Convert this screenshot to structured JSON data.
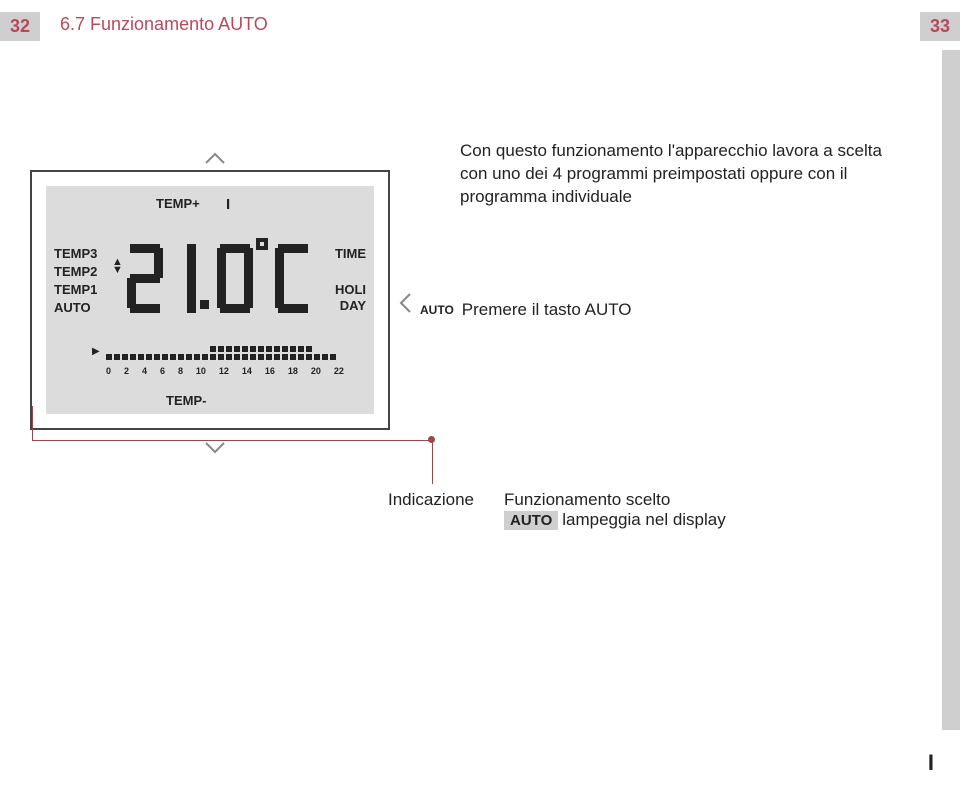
{
  "page": {
    "left_num": "32",
    "right_num": "33",
    "title": "6.7 Funzionamento AUTO",
    "i_mark": "I"
  },
  "device": {
    "temp_plus": "TEMP+",
    "day_bar": "I",
    "labels_left": {
      "t3": "TEMP3",
      "t2": "TEMP2",
      "t1": "TEMP1",
      "auto": "AUTO"
    },
    "labels_right": {
      "time": "TIME",
      "holi": "HOLI",
      "day": "DAY"
    },
    "temp_minus": "TEMP-",
    "digits": "21.0°C",
    "schedule_hours": [
      "0",
      "2",
      "4",
      "6",
      "8",
      "10",
      "12",
      "14",
      "16",
      "18",
      "20",
      "22"
    ],
    "schedule_top": [
      0,
      0,
      0,
      0,
      0,
      0,
      0,
      0,
      0,
      0,
      0,
      0,
      0,
      1,
      1,
      1,
      1,
      1,
      1,
      1,
      1,
      1,
      1,
      1,
      1,
      1,
      0,
      0,
      0,
      0
    ],
    "schedule_bottom": [
      1,
      1,
      1,
      1,
      1,
      1,
      1,
      1,
      1,
      1,
      1,
      1,
      1,
      1,
      1,
      1,
      1,
      1,
      1,
      1,
      1,
      1,
      1,
      1,
      1,
      1,
      1,
      1,
      1,
      0
    ]
  },
  "description": "Con questo funzionamento l'apparecchio lavora a scelta con uno dei 4 programmi preimpostati oppure con il programma individuale",
  "action": {
    "prefix": "AUTO",
    "text": "Premere il tasto AUTO"
  },
  "indication": {
    "label": "Indicazione",
    "right_line1": "Funzionamento scelto",
    "badge": "AUTO",
    "right_line2": "lampeggia nel display"
  },
  "colors": {
    "accent": "#b8495a",
    "framebg": "#cfcfcf",
    "line": "#964a4a"
  }
}
